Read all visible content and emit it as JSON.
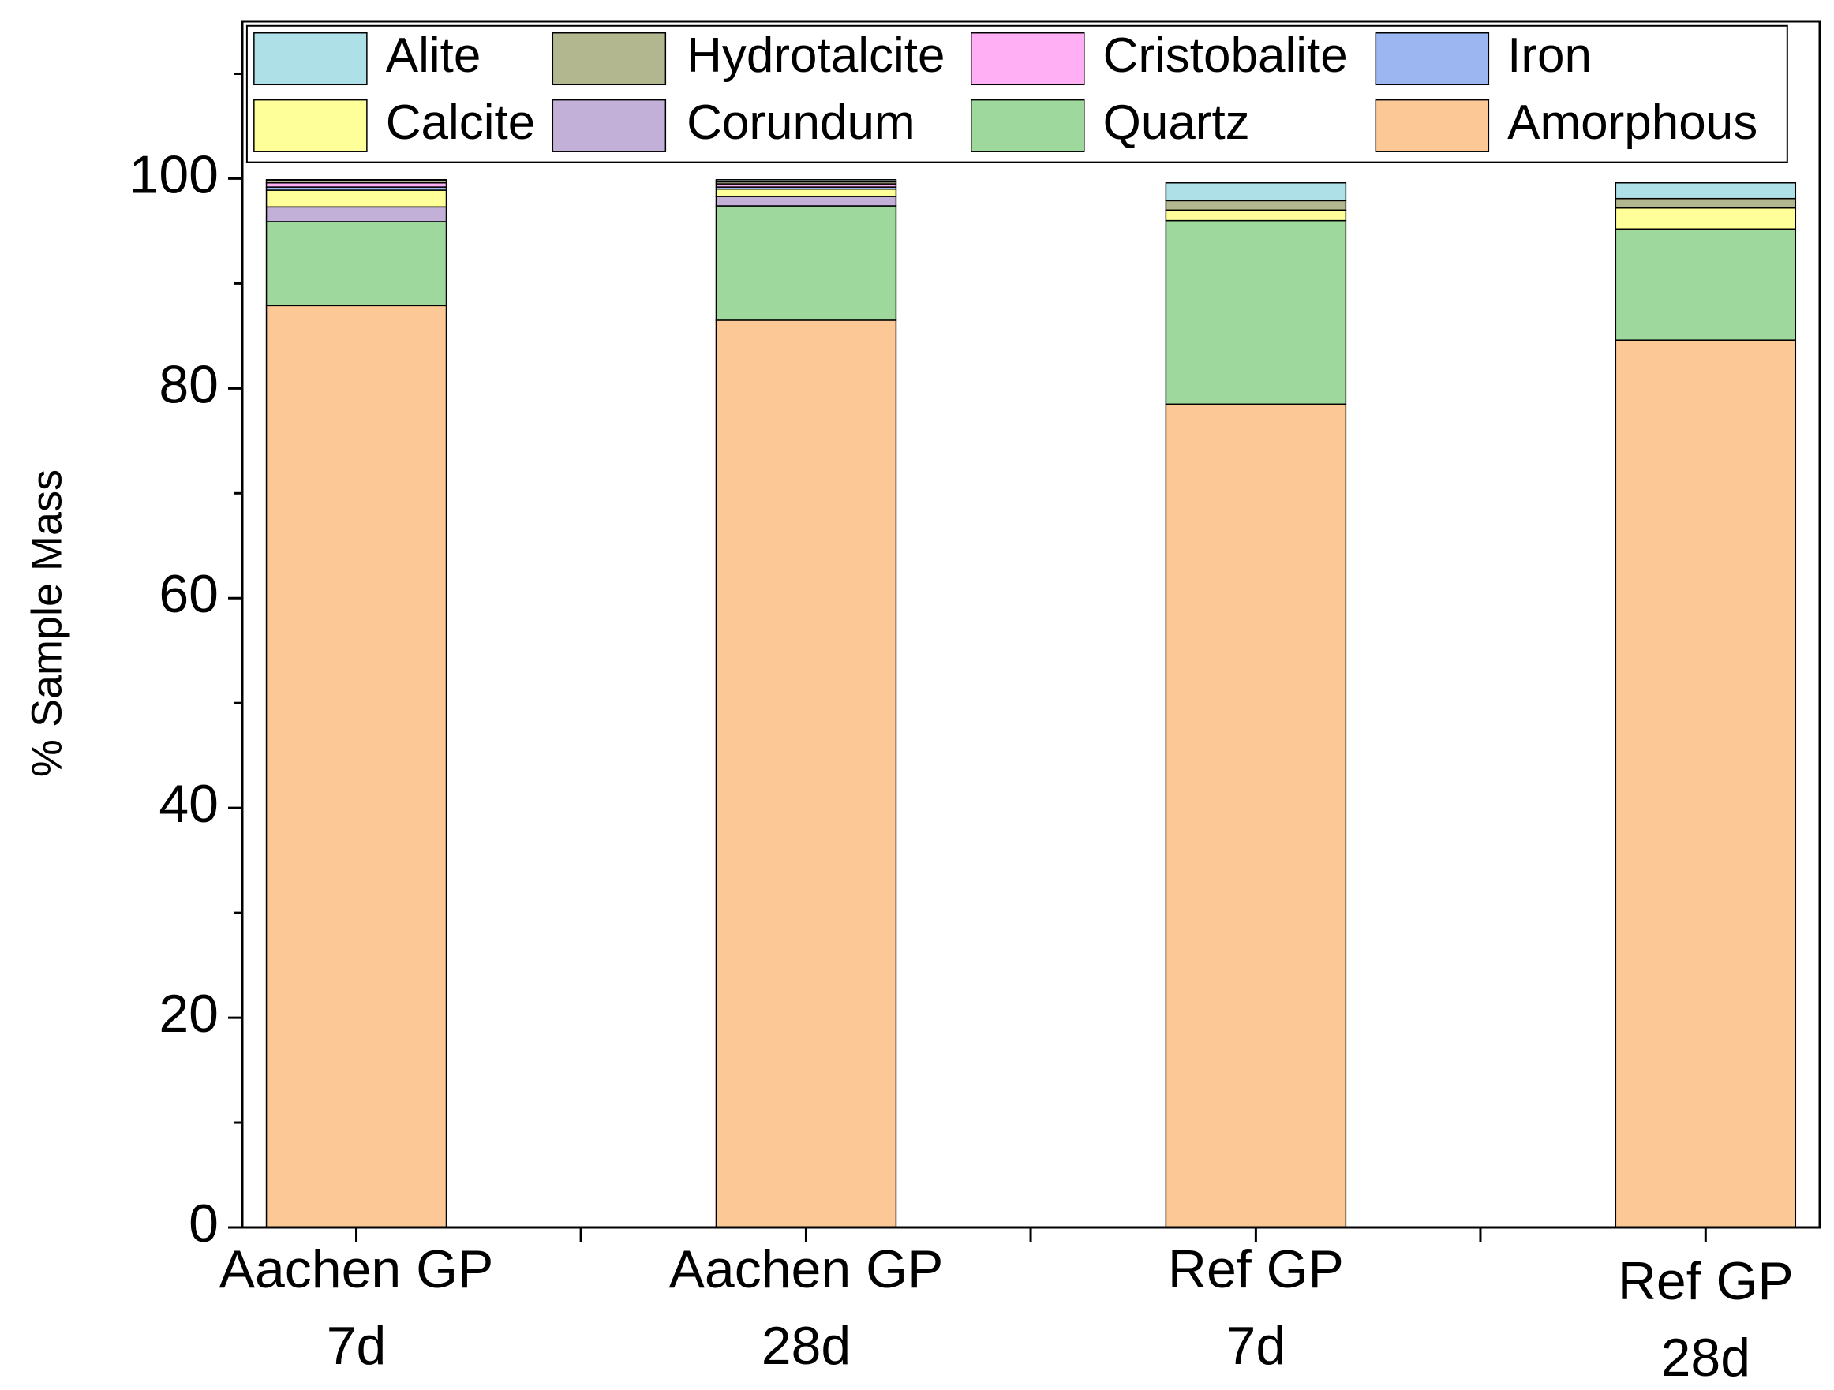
{
  "chart_data": {
    "type": "stacked_bar",
    "ylabel": "% Sample Mass",
    "categories": [
      [
        "Aachen GP",
        "7d"
      ],
      [
        "Aachen GP",
        "28d"
      ],
      [
        "Ref GP",
        "7d"
      ],
      [
        "Ref GP",
        "28d"
      ]
    ],
    "series": [
      {
        "name": "Alite",
        "color": "#aee0e8",
        "values": [
          0.1,
          0.2,
          1.7,
          1.5
        ]
      },
      {
        "name": "Hydrotalcite",
        "color": "#b3b78f",
        "values": [
          0.2,
          0.2,
          0.9,
          0.9
        ]
      },
      {
        "name": "Cristobalite",
        "color": "#ffb0f4",
        "values": [
          0.4,
          0.3,
          0,
          0
        ]
      },
      {
        "name": "Iron",
        "color": "#9bb6f0",
        "values": [
          0.3,
          0.2,
          0,
          0
        ]
      },
      {
        "name": "Calcite",
        "color": "#ffff99",
        "values": [
          1.6,
          0.7,
          1.0,
          2.0
        ]
      },
      {
        "name": "Corundum",
        "color": "#c2b0d8",
        "values": [
          1.4,
          0.9,
          0,
          0
        ]
      },
      {
        "name": "Quartz",
        "color": "#9ed89c",
        "values": [
          8.0,
          10.9,
          17.5,
          10.6
        ]
      },
      {
        "name": "Amorphous",
        "color": "#fcc896",
        "values": [
          87.9,
          86.5,
          78.5,
          84.6
        ]
      }
    ],
    "ylim": [
      0,
      115
    ],
    "yticks": [
      0,
      20,
      40,
      60,
      80,
      100
    ],
    "yminorticks": [
      10,
      30,
      50,
      70,
      90,
      110
    ]
  }
}
